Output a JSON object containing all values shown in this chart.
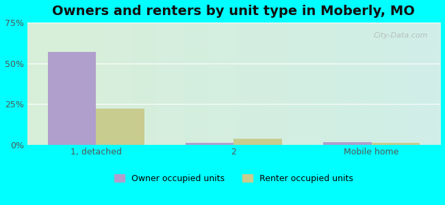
{
  "title": "Owners and renters by unit type in Moberly, MO",
  "categories": [
    "1, detached",
    "2",
    "Mobile home"
  ],
  "owner_values": [
    57.0,
    1.0,
    1.5
  ],
  "renter_values": [
    22.0,
    3.5,
    1.0
  ],
  "owner_color": "#b09fcc",
  "renter_color": "#c8cc8f",
  "ylim": [
    0,
    75
  ],
  "yticks": [
    0,
    25,
    50,
    75
  ],
  "yticklabels": [
    "0%",
    "25%",
    "50%",
    "75%"
  ],
  "bar_width": 0.35,
  "background_outer": "#00ffff",
  "background_inner_left": "#e8f5e2",
  "background_inner_right": "#d8f0ee",
  "legend_labels": [
    "Owner occupied units",
    "Renter occupied units"
  ],
  "watermark": "City-Data.com",
  "title_fontsize": 14,
  "tick_fontsize": 9,
  "legend_fontsize": 9
}
